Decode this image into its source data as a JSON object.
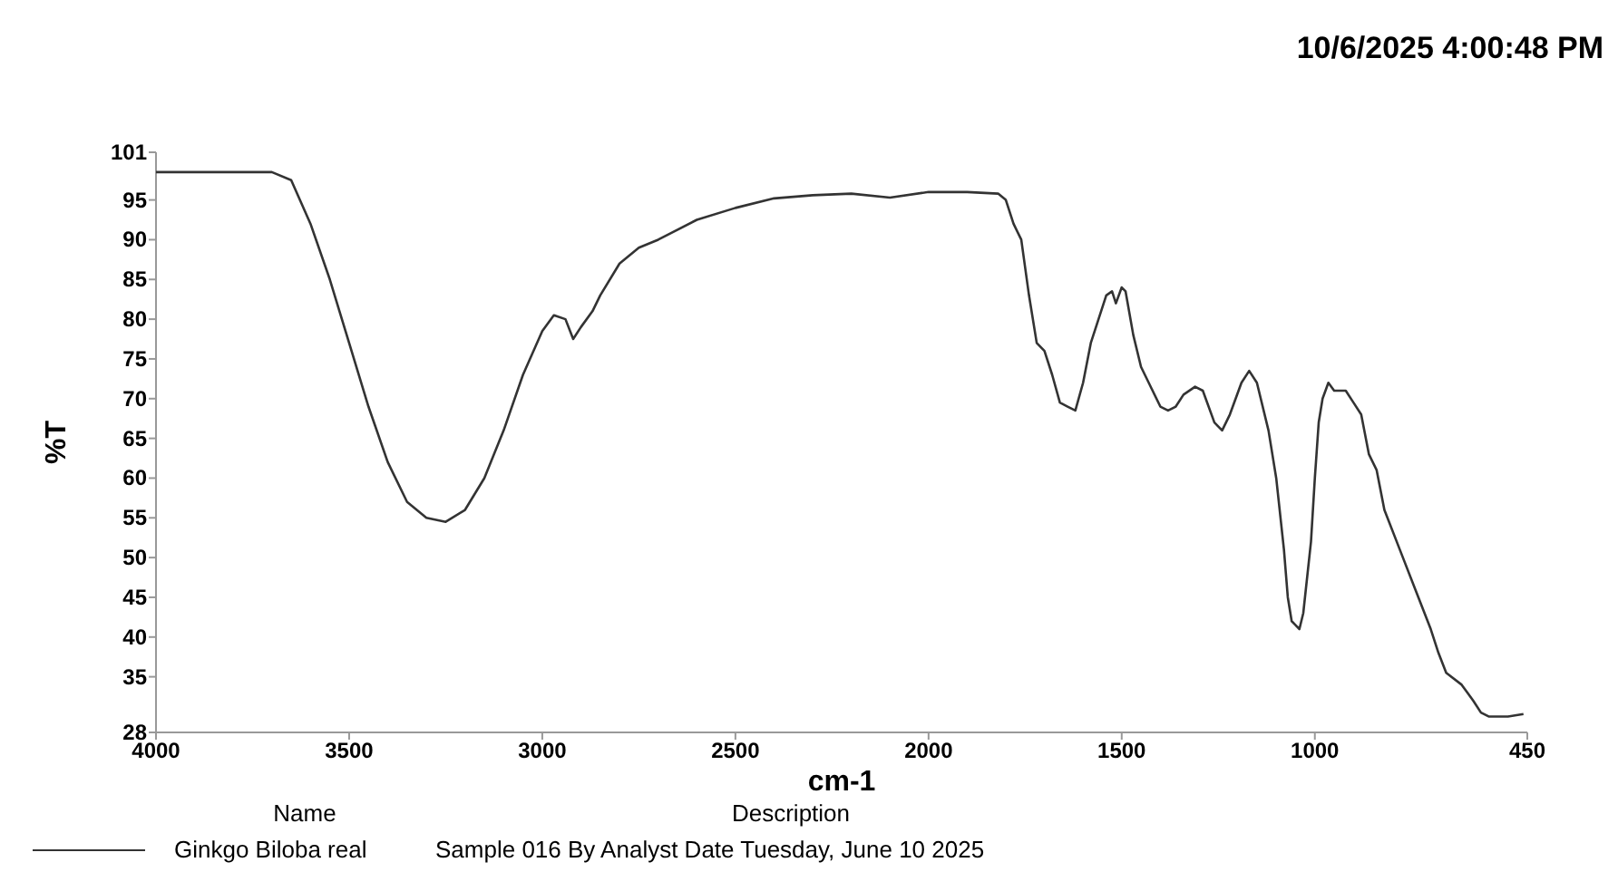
{
  "chart_data": {
    "type": "line",
    "title": "10/6/2025 4:00:48 PM",
    "xlabel": "cm-1",
    "ylabel": "%T",
    "xlim": [
      4000,
      450
    ],
    "xticks": [
      4000,
      3500,
      3000,
      2500,
      2000,
      1500,
      1000,
      450
    ],
    "ylim": [
      28,
      101
    ],
    "yticks": [
      28,
      35,
      40,
      45,
      50,
      55,
      60,
      65,
      70,
      75,
      80,
      85,
      90,
      95,
      101
    ],
    "grid": false,
    "legend": "bottom",
    "legend_title": "Name",
    "marker": "none",
    "line_style": "solid",
    "annotations": [
      "Description",
      "Sample 016 By Analyst Date Tuesday, June 10 2025"
    ],
    "series": [
      {
        "name": "Ginkgo Biloba real",
        "color": "#333333",
        "x": [
          4000,
          3700,
          3650,
          3600,
          3550,
          3500,
          3450,
          3400,
          3350,
          3300,
          3250,
          3200,
          3150,
          3100,
          3050,
          3000,
          2970,
          2940,
          2920,
          2900,
          2870,
          2850,
          2800,
          2750,
          2700,
          2600,
          2500,
          2400,
          2300,
          2200,
          2100,
          2000,
          1900,
          1820,
          1800,
          1780,
          1760,
          1740,
          1720,
          1700,
          1680,
          1660,
          1640,
          1620,
          1600,
          1580,
          1560,
          1540,
          1525,
          1515,
          1500,
          1490,
          1470,
          1450,
          1420,
          1400,
          1380,
          1360,
          1340,
          1310,
          1290,
          1260,
          1240,
          1220,
          1190,
          1170,
          1150,
          1120,
          1100,
          1080,
          1070,
          1060,
          1050,
          1040,
          1030,
          1010,
          1000,
          990,
          980,
          965,
          950,
          920,
          900,
          880,
          860,
          840,
          820,
          780,
          740,
          700,
          680,
          660,
          620,
          590,
          570,
          550,
          500,
          460
        ],
        "values": [
          98.5,
          98.5,
          97.5,
          92,
          85,
          77,
          69,
          62,
          57,
          55,
          54.5,
          56,
          60,
          66,
          73,
          78.5,
          80.5,
          80,
          77.5,
          79,
          81,
          83,
          87,
          89,
          90,
          92.5,
          94,
          95.2,
          95.6,
          95.8,
          95.3,
          96,
          96,
          95.8,
          95,
          92,
          90,
          83,
          77,
          76,
          73,
          69.5,
          69,
          68.5,
          72,
          77,
          80,
          83,
          83.5,
          82,
          84,
          83.5,
          78,
          74,
          71,
          69,
          68.5,
          69,
          70.5,
          71.5,
          71,
          67,
          66,
          68,
          72,
          73.5,
          72,
          66,
          60,
          51,
          45,
          42,
          41.5,
          41,
          43,
          52,
          60,
          67,
          70,
          72,
          71,
          71,
          69.5,
          68,
          63,
          61,
          56,
          51,
          46,
          41,
          38,
          35.5,
          34,
          32,
          30.5,
          30,
          30,
          30.3
        ]
      }
    ]
  }
}
